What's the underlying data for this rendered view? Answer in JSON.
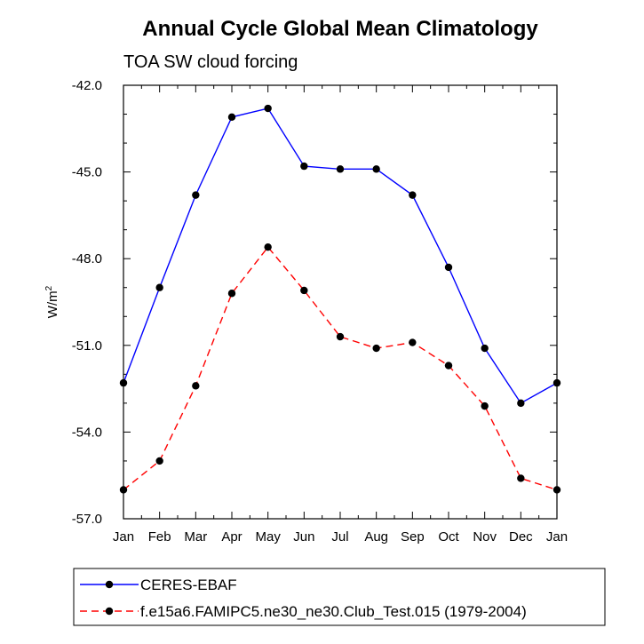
{
  "chart_data": {
    "type": "line",
    "title": "Annual Cycle Global Mean Climatology",
    "subtitle": "TOA SW cloud forcing",
    "ylabel": "W/m",
    "ylabel_sup": "2",
    "xlabel": "",
    "categories": [
      "Jan",
      "Feb",
      "Mar",
      "Apr",
      "May",
      "Jun",
      "Jul",
      "Aug",
      "Sep",
      "Oct",
      "Nov",
      "Dec",
      "Jan"
    ],
    "ylim": [
      -57.0,
      -42.0
    ],
    "yticks": [
      -57.0,
      -54.0,
      -51.0,
      -48.0,
      -45.0,
      -42.0
    ],
    "ytick_labels": [
      "-57.0",
      "-54.0",
      "-51.0",
      "-48.0",
      "-45.0",
      "-42.0"
    ],
    "grid": false,
    "legend_position": "bottom",
    "series": [
      {
        "name": "CERES-EBAF",
        "color": "#0000ff",
        "style": "solid",
        "values": [
          -52.3,
          -49.0,
          -45.8,
          -43.1,
          -42.8,
          -44.8,
          -44.9,
          -44.9,
          -45.8,
          -48.3,
          -51.1,
          -53.0,
          -52.3
        ]
      },
      {
        "name": "f.e15a6.FAMIPC5.ne30_ne30.Club_Test.015 (1979-2004)",
        "color": "#ff0000",
        "style": "dashed",
        "values": [
          -56.0,
          -55.0,
          -52.4,
          -49.2,
          -47.6,
          -49.1,
          -50.7,
          -51.1,
          -50.9,
          -51.7,
          -53.1,
          -55.6,
          -56.0
        ]
      }
    ]
  }
}
